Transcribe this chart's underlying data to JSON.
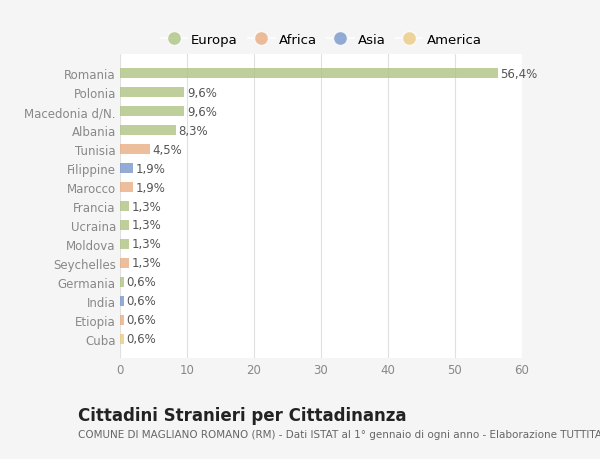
{
  "categories": [
    "Romania",
    "Polonia",
    "Macedonia d/N.",
    "Albania",
    "Tunisia",
    "Filippine",
    "Marocco",
    "Francia",
    "Ucraina",
    "Moldova",
    "Seychelles",
    "Germania",
    "India",
    "Etiopia",
    "Cuba"
  ],
  "values": [
    56.4,
    9.6,
    9.6,
    8.3,
    4.5,
    1.9,
    1.9,
    1.3,
    1.3,
    1.3,
    1.3,
    0.6,
    0.6,
    0.6,
    0.6
  ],
  "labels": [
    "56,4%",
    "9,6%",
    "9,6%",
    "8,3%",
    "4,5%",
    "1,9%",
    "1,9%",
    "1,3%",
    "1,3%",
    "1,3%",
    "1,3%",
    "0,6%",
    "0,6%",
    "0,6%",
    "0,6%"
  ],
  "continents": [
    "Europa",
    "Europa",
    "Europa",
    "Europa",
    "Africa",
    "Asia",
    "Africa",
    "Europa",
    "Europa",
    "Europa",
    "Africa",
    "Europa",
    "Asia",
    "Africa",
    "America"
  ],
  "colors": {
    "Europa": "#a8c07a",
    "Africa": "#e8a87a",
    "Asia": "#7090c8",
    "America": "#e8c87a"
  },
  "legend_labels": [
    "Europa",
    "Africa",
    "Asia",
    "America"
  ],
  "xlim": [
    0,
    60
  ],
  "xticks": [
    0,
    10,
    20,
    30,
    40,
    50,
    60
  ],
  "title": "Cittadini Stranieri per Cittadinanza",
  "subtitle": "COMUNE DI MAGLIANO ROMANO (RM) - Dati ISTAT al 1° gennaio di ogni anno - Elaborazione TUTTITALIA.IT",
  "background_color": "#f5f5f5",
  "plot_background": "#ffffff",
  "grid_color": "#e0e0e0",
  "title_fontsize": 12,
  "subtitle_fontsize": 7.5,
  "label_fontsize": 8.5,
  "tick_fontsize": 8.5,
  "legend_fontsize": 9.5,
  "bar_height": 0.55,
  "bar_alpha": 0.75
}
